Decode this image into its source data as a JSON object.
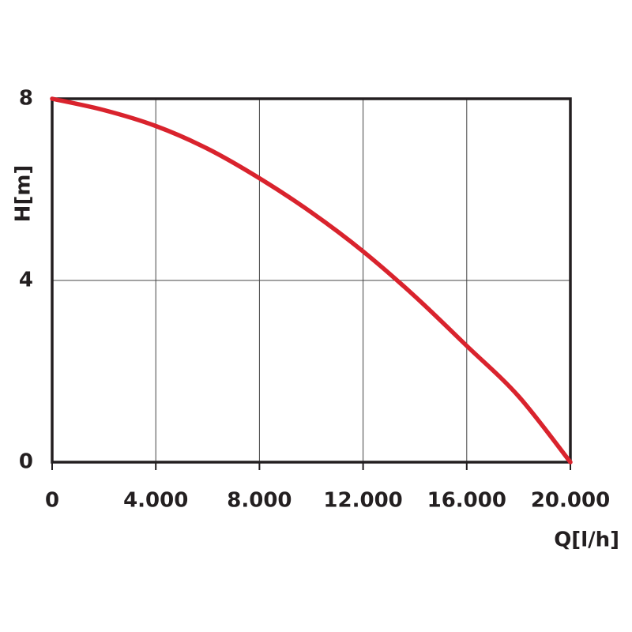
{
  "chart_data": {
    "type": "line",
    "x_label": "Q[l/h]",
    "y_label": "H[m]",
    "x": [
      0,
      2000,
      4000,
      6000,
      8000,
      10000,
      12000,
      14000,
      16000,
      18000,
      20000
    ],
    "series": [
      {
        "color": "#d9232d",
        "values": [
          8,
          7.75,
          7.4,
          6.9,
          6.25,
          5.5,
          4.64,
          3.65,
          2.56,
          1.45,
          0
        ]
      }
    ],
    "xlim": [
      0,
      20000
    ],
    "xticks": [
      0,
      {
        "value": 4000,
        "label": "4.000"
      },
      {
        "value": 8000,
        "label": "8.000"
      },
      {
        "value": 12000,
        "label": "12.000"
      },
      {
        "value": 16000,
        "label": "16.000"
      },
      {
        "value": 20000,
        "label": "20.000"
      }
    ],
    "ylim": [
      0,
      8
    ],
    "yticks": [
      0,
      4,
      8
    ],
    "grid": true
  }
}
